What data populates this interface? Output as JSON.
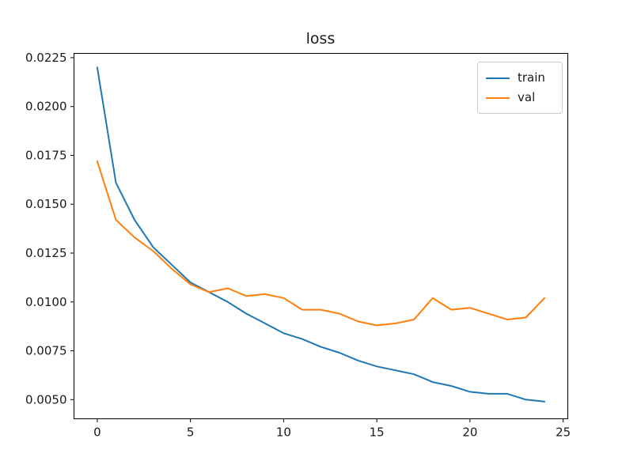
{
  "figure": {
    "background": "#ffffff",
    "text_color": "#1a1a1a",
    "spine_color": "#000000",
    "legend_border_color": "#cccccc"
  },
  "chart_data": {
    "type": "line",
    "title": "loss",
    "xlabel": "",
    "ylabel": "",
    "grid": false,
    "legend_position": "upper-right",
    "x": [
      0,
      1,
      2,
      3,
      4,
      5,
      6,
      7,
      8,
      9,
      10,
      11,
      12,
      13,
      14,
      15,
      16,
      17,
      18,
      19,
      20,
      21,
      22,
      23,
      24
    ],
    "series": [
      {
        "name": "train",
        "color": "#1f77b4",
        "values": [
          0.022,
          0.0161,
          0.0142,
          0.0128,
          0.0119,
          0.011,
          0.0105,
          0.01,
          0.0094,
          0.0089,
          0.0084,
          0.0081,
          0.0077,
          0.0074,
          0.007,
          0.0067,
          0.0065,
          0.0063,
          0.0059,
          0.0057,
          0.0054,
          0.0053,
          0.0053,
          0.005,
          0.0049
        ]
      },
      {
        "name": "val",
        "color": "#ff7f0e",
        "values": [
          0.0172,
          0.0142,
          0.0133,
          0.0126,
          0.0117,
          0.0109,
          0.0105,
          0.0107,
          0.0103,
          0.0104,
          0.0102,
          0.0096,
          0.0096,
          0.0094,
          0.009,
          0.0088,
          0.0089,
          0.0091,
          0.0102,
          0.0096,
          0.0097,
          0.0094,
          0.0091,
          0.0092,
          0.0102
        ]
      }
    ],
    "xticks": [
      0,
      5,
      10,
      15,
      20,
      25
    ],
    "xtick_labels": [
      "0",
      "5",
      "10",
      "15",
      "20",
      "25"
    ],
    "yticks": [
      0.005,
      0.0075,
      0.01,
      0.0125,
      0.015,
      0.0175,
      0.02,
      0.0225
    ],
    "ytick_labels": [
      "0.0050",
      "0.0075",
      "0.0100",
      "0.0125",
      "0.0150",
      "0.0175",
      "0.0200",
      "0.0225"
    ],
    "xlim": [
      -1.25,
      25.25
    ],
    "ylim": [
      0.00402,
      0.02272
    ]
  }
}
